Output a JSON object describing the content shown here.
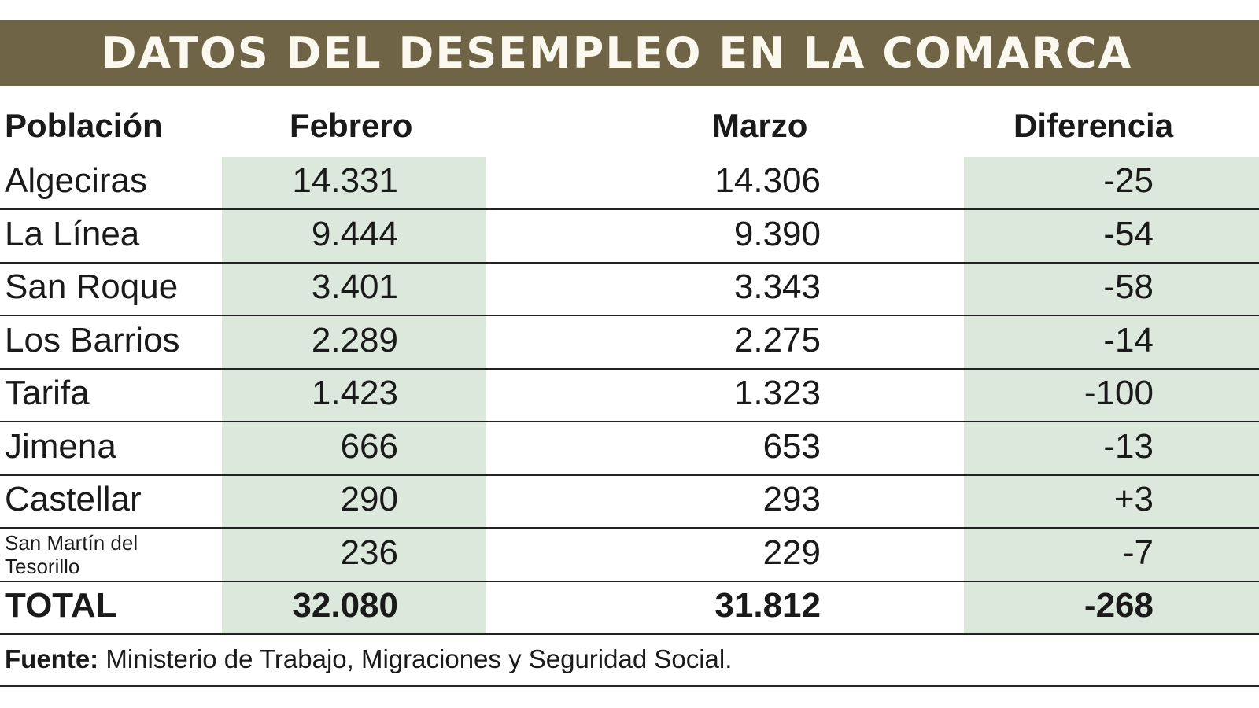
{
  "title": "DATOS DEL DESEMPLEO EN LA COMARCA",
  "colors": {
    "banner": "#6f6446",
    "highlight_column": "#dde8dc"
  },
  "chart_data": {
    "type": "table",
    "title": "DATOS DEL DESEMPLEO EN LA COMARCA",
    "columns": [
      "Población",
      "Febrero",
      "Marzo",
      "Diferencia"
    ],
    "rows": [
      {
        "name": "Algeciras",
        "feb": "14.331",
        "mar": "14.306",
        "dif": "-25"
      },
      {
        "name": "La Línea",
        "feb": "9.444",
        "mar": "9.390",
        "dif": "-54"
      },
      {
        "name": "San Roque",
        "feb": "3.401",
        "mar": "3.343",
        "dif": "-58"
      },
      {
        "name": "Los Barrios",
        "feb": "2.289",
        "mar": "2.275",
        "dif": "-14"
      },
      {
        "name": "Tarifa",
        "feb": "1.423",
        "mar": "1.323",
        "dif": "-100"
      },
      {
        "name": "Jimena",
        "feb": "666",
        "mar": "653",
        "dif": "-13"
      },
      {
        "name": "Castellar",
        "feb": "290",
        "mar": "293",
        "dif": "+3"
      },
      {
        "name": "San Martín del Tesorillo",
        "feb": "236",
        "mar": "229",
        "dif": "-7"
      }
    ],
    "total": {
      "name": "TOTAL",
      "feb": "32.080",
      "mar": "31.812",
      "dif": "-268"
    }
  },
  "footer": {
    "label": "Fuente:",
    "text": " Ministerio de Trabajo, Migraciones y Seguridad Social."
  }
}
